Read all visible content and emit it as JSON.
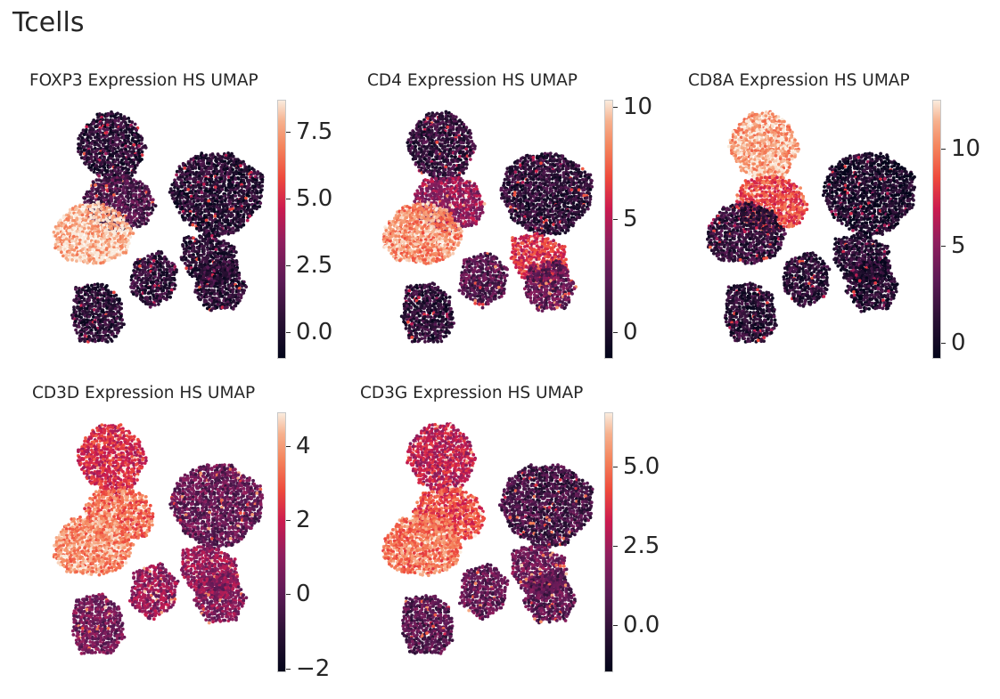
{
  "suptitle": "Tcells",
  "chart_data": [
    {
      "type": "scatter",
      "title": "FOXP3 Expression HS UMAP",
      "xlabel": "",
      "ylabel": "",
      "colormap": "rocket",
      "colorbar": {
        "vmin": -1.0,
        "vmax": 8.7,
        "ticks": [
          0.0,
          2.5,
          5.0,
          7.5
        ],
        "tick_labels": [
          "0.0",
          "2.5",
          "5.0",
          "7.5"
        ]
      },
      "cluster_levels": {
        "top": 0.4,
        "mid": 1.5,
        "left": 8.0,
        "right": 0.3,
        "b1": 0.4,
        "b2": 0.6,
        "b3": 0.4,
        "b4": 0.5
      },
      "grid": false
    },
    {
      "type": "scatter",
      "title": "CD4 Expression HS UMAP",
      "xlabel": "",
      "ylabel": "",
      "colormap": "rocket",
      "colorbar": {
        "vmin": -1.2,
        "vmax": 10.3,
        "ticks": [
          0,
          5,
          10
        ],
        "tick_labels": [
          "0",
          "5",
          "10"
        ]
      },
      "cluster_levels": {
        "top": 0.8,
        "mid": 4.0,
        "left": 8.5,
        "right": 0.6,
        "b1": 0.6,
        "b2": 2.0,
        "b3": 6.0,
        "b4": 2.5
      },
      "grid": false
    },
    {
      "type": "scatter",
      "title": "CD8A Expression HS UMAP",
      "xlabel": "",
      "ylabel": "",
      "colormap": "rocket",
      "colorbar": {
        "vmin": -0.8,
        "vmax": 12.5,
        "ticks": [
          0,
          5,
          10
        ],
        "tick_labels": [
          "0",
          "5",
          "10"
        ]
      },
      "cluster_levels": {
        "top": 11.0,
        "mid": 8.5,
        "left": 1.5,
        "right": 0.4,
        "b1": 1.0,
        "b2": 1.2,
        "b3": 1.0,
        "b4": 0.8
      },
      "grid": false
    },
    {
      "type": "scatter",
      "title": "CD3D Expression HS UMAP",
      "xlabel": "",
      "ylabel": "",
      "colormap": "rocket",
      "colorbar": {
        "vmin": -2.1,
        "vmax": 4.9,
        "ticks": [
          -2,
          0,
          2,
          4
        ],
        "tick_labels": [
          "−2",
          "0",
          "2",
          "4"
        ]
      },
      "cluster_levels": {
        "top": 2.2,
        "mid": 3.3,
        "left": 3.8,
        "right": 0.2,
        "b1": 0.5,
        "b2": 1.0,
        "b3": 1.2,
        "b4": 0.8
      },
      "grid": false
    },
    {
      "type": "scatter",
      "title": "CD3G Expression HS UMAP",
      "xlabel": "",
      "ylabel": "",
      "colormap": "rocket",
      "colorbar": {
        "vmin": -1.5,
        "vmax": 6.7,
        "ticks": [
          0.0,
          2.5,
          5.0
        ],
        "tick_labels": [
          "0.0",
          "2.5",
          "5.0"
        ]
      },
      "cluster_levels": {
        "top": 3.0,
        "mid": 4.2,
        "left": 5.0,
        "right": 0.4,
        "b1": 0.8,
        "b2": 1.2,
        "b3": 1.5,
        "b4": 1.0
      },
      "grid": false
    }
  ]
}
